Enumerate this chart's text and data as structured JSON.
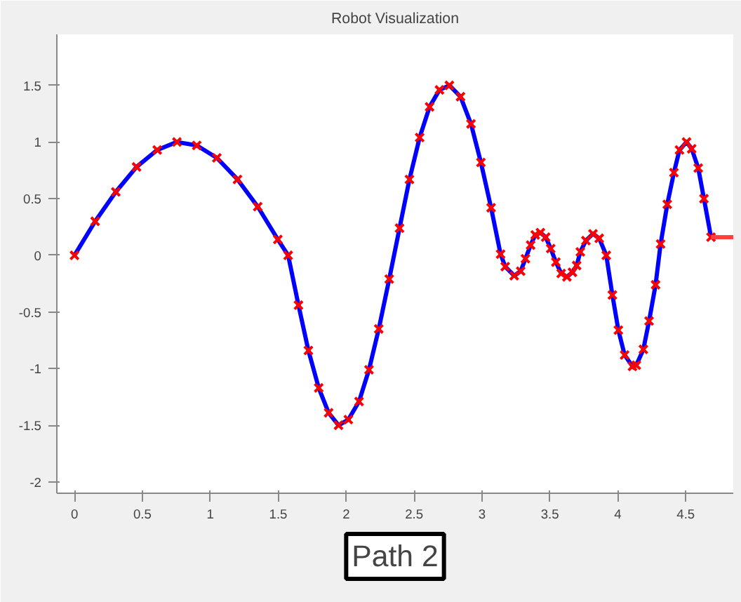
{
  "chart_data": {
    "type": "line",
    "title": "Robot Visualization",
    "x": [
      0,
      0.152,
      0.304,
      0.457,
      0.609,
      0.754,
      0.9,
      1.048,
      1.2,
      1.349,
      1.497,
      1.573,
      1.649,
      1.722,
      1.798,
      1.871,
      1.944,
      2.016,
      2.095,
      2.168,
      2.24,
      2.317,
      2.393,
      2.466,
      2.541,
      2.614,
      2.687,
      2.76,
      2.842,
      2.919,
      2.992,
      3.067,
      3.137,
      3.171,
      3.237,
      3.285,
      3.32,
      3.358,
      3.392,
      3.43,
      3.469,
      3.506,
      3.544,
      3.583,
      3.625,
      3.666,
      3.697,
      3.724,
      3.765,
      3.817,
      3.863,
      3.915,
      3.96,
      4.004,
      4.05,
      4.108,
      4.136,
      4.188,
      4.23,
      4.278,
      4.315,
      4.364,
      4.413,
      4.454,
      4.506,
      4.544,
      4.592,
      4.634,
      4.686
    ],
    "series": [
      {
        "color": "#0000ff",
        "values": [
          0,
          0.3,
          0.56,
          0.78,
          0.93,
          1.0,
          0.97,
          0.86,
          0.67,
          0.43,
          0.14,
          0,
          -0.44,
          -0.84,
          -1.17,
          -1.39,
          -1.5,
          -1.45,
          -1.29,
          -1.01,
          -0.65,
          -0.21,
          0.24,
          0.67,
          1.04,
          1.31,
          1.46,
          1.5,
          1.4,
          1.16,
          0.82,
          0.42,
          0.01,
          -0.1,
          -0.18,
          -0.14,
          -0.03,
          0.09,
          0.18,
          0.2,
          0.16,
          0.06,
          -0.06,
          -0.16,
          -0.19,
          -0.15,
          -0.09,
          0.03,
          0.13,
          0.19,
          0.15,
          0,
          -0.35,
          -0.66,
          -0.88,
          -0.98,
          -0.97,
          -0.83,
          -0.58,
          -0.26,
          0.1,
          0.45,
          0.73,
          0.93,
          1.0,
          0.94,
          0.77,
          0.5,
          0.16
        ]
      },
      {
        "type": "scatter",
        "color": "#ff0000",
        "marker": "cross",
        "values": [
          0,
          0.3,
          0.56,
          0.78,
          0.93,
          1.0,
          0.97,
          0.86,
          0.67,
          0.43,
          0.14,
          0,
          -0.44,
          -0.84,
          -1.17,
          -1.39,
          -1.5,
          -1.45,
          -1.29,
          -1.01,
          -0.65,
          -0.21,
          0.24,
          0.67,
          1.04,
          1.31,
          1.46,
          1.5,
          1.4,
          1.16,
          0.82,
          0.42,
          0.01,
          -0.1,
          -0.18,
          -0.14,
          -0.03,
          0.09,
          0.18,
          0.2,
          0.16,
          0.06,
          -0.06,
          -0.16,
          -0.19,
          -0.15,
          -0.09,
          0.03,
          0.13,
          0.19,
          0.15,
          0,
          -0.35,
          -0.66,
          -0.88,
          -0.98,
          -0.97,
          -0.83,
          -0.58,
          -0.26,
          0.1,
          0.45,
          0.73,
          0.93,
          1.0,
          0.94,
          0.77,
          0.5,
          0.16
        ]
      },
      {
        "type": "line",
        "color": "#ff4040",
        "x": [
          4.686,
          4.85
        ],
        "values": [
          0.16,
          0.16
        ]
      }
    ],
    "xlim": [
      -0.13,
      4.85
    ],
    "ylim": [
      -2.1,
      1.95
    ],
    "xticks": [
      0,
      0.5,
      1,
      1.5,
      2,
      2.5,
      3,
      3.5,
      4,
      4.5
    ],
    "yticks": [
      -2,
      -1.5,
      -1,
      -0.5,
      0,
      0.5,
      1,
      1.5
    ],
    "annotations": [
      "Path 2"
    ]
  }
}
